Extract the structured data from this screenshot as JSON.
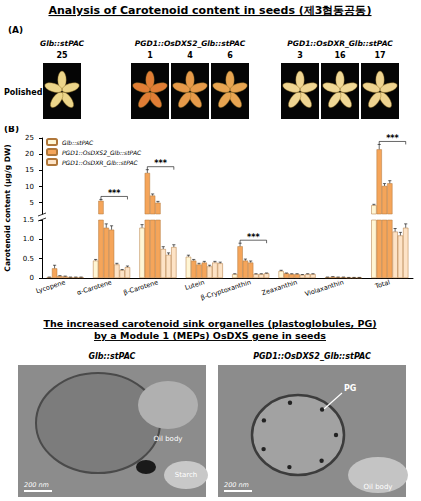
{
  "title": "Analysis of Carotenoid content in seeds (제3협동공동)",
  "panel_a": {
    "label": "(A)",
    "row_label": "Polished",
    "groups": [
      {
        "name": "Glb::stPAC",
        "lines": [
          "25"
        ]
      },
      {
        "name": "PGD1::OsDXS2_Glb::stPAC",
        "lines": [
          "1",
          "4",
          "6"
        ]
      },
      {
        "name": "PGD1::OsDXR_Glb::stPAC",
        "lines": [
          "3",
          "16",
          "17"
        ]
      }
    ]
  },
  "panel_b_label": "(B)",
  "chart_data": {
    "type": "bar",
    "ylabel": "Carotenoid content (μg/g DW)",
    "categories": [
      "Lycopene",
      "α-Carotene",
      "β-Carotene",
      "Lutein",
      "β-Cryptoxanthin",
      "Zeaxanthin",
      "Violaxanthin",
      "Total"
    ],
    "series": [
      {
        "name": "Glb::stPAC",
        "color": "#fff6d5",
        "values": [
          0.02,
          0.45,
          1.3,
          0.55,
          0.1,
          0.18,
          0.02,
          4.2
        ],
        "errors": [
          0.005,
          0.03,
          0.08,
          0.04,
          0.01,
          0.02,
          0.005,
          0.3
        ]
      },
      {
        "name": "PGD1::OsDXS2_Glb::stPAC",
        "color": "#f5a55a",
        "values": [
          0.25,
          5.6,
          14.2,
          0.45,
          0.82,
          0.12,
          0.03,
          21.5
        ],
        "errors": [
          0.08,
          0.4,
          1.0,
          0.03,
          0.08,
          0.01,
          0.005,
          1.5
        ]
      },
      {
        "name": "PGD1::OsDXS2_Glb::stPAC",
        "color": "#f5a55a",
        "values": [
          0.05,
          1.3,
          7.2,
          0.35,
          0.45,
          0.1,
          0.02,
          10.2
        ],
        "errors": [
          0.01,
          0.1,
          0.5,
          0.03,
          0.04,
          0.01,
          0.005,
          0.7
        ]
      },
      {
        "name": "PGD1::OsDXS2_Glb::stPAC",
        "color": "#f5a55a",
        "values": [
          0.04,
          1.25,
          5.0,
          0.4,
          0.4,
          0.1,
          0.02,
          11.0
        ],
        "errors": [
          0.01,
          0.1,
          0.4,
          0.03,
          0.04,
          0.01,
          0.005,
          0.8
        ]
      },
      {
        "name": "PGD1::OsDXR_Glb::stPAC",
        "color": "#fde3c6",
        "values": [
          0.02,
          0.35,
          0.75,
          0.3,
          0.1,
          0.08,
          0.01,
          1.2
        ],
        "errors": [
          0.005,
          0.03,
          0.06,
          0.03,
          0.01,
          0.01,
          0.005,
          0.08
        ]
      },
      {
        "name": "PGD1::OsDXR_Glb::stPAC",
        "color": "#fde3c6",
        "values": [
          0.02,
          0.2,
          0.6,
          0.4,
          0.1,
          0.1,
          0.01,
          1.1
        ],
        "errors": [
          0.005,
          0.02,
          0.05,
          0.03,
          0.01,
          0.01,
          0.005,
          0.08
        ]
      },
      {
        "name": "PGD1::OsDXR_Glb::stPAC",
        "color": "#fde3c6",
        "values": [
          0.02,
          0.28,
          0.8,
          0.38,
          0.12,
          0.1,
          0.01,
          1.3
        ],
        "errors": [
          0.005,
          0.03,
          0.06,
          0.03,
          0.01,
          0.01,
          0.005,
          0.1
        ]
      }
    ],
    "ylim": [
      0,
      25
    ],
    "axis_break": 1.5,
    "yticks": [
      0,
      0.5,
      {
        "value": 1,
        "label": "1.0"
      },
      1.5,
      5,
      10,
      15,
      20,
      25
    ],
    "annotations": [
      {
        "category": "α-Carotene",
        "text": "***"
      },
      {
        "category": "β-Carotene",
        "text": "***"
      },
      {
        "category": "β-Cryptoxanthin",
        "text": "***"
      },
      {
        "category": "Total",
        "text": "***"
      }
    ],
    "legend": "top-left",
    "grid": false
  },
  "tem": {
    "title_lines": [
      "The increased carotenoid sink organelles (plastoglobules, PG)",
      "by a Module 1 (MEPs) OsDXS gene in seeds"
    ],
    "images": [
      {
        "label": "Glb::stPAC",
        "annotations": [
          "Oil body",
          "Starch"
        ],
        "scale_bar": "200 nm"
      },
      {
        "label": "PGD1::OsDXS2_Glb::stPAC",
        "annotations": [
          "PG",
          "Oil body"
        ],
        "scale_bar": "200 nm"
      }
    ]
  }
}
